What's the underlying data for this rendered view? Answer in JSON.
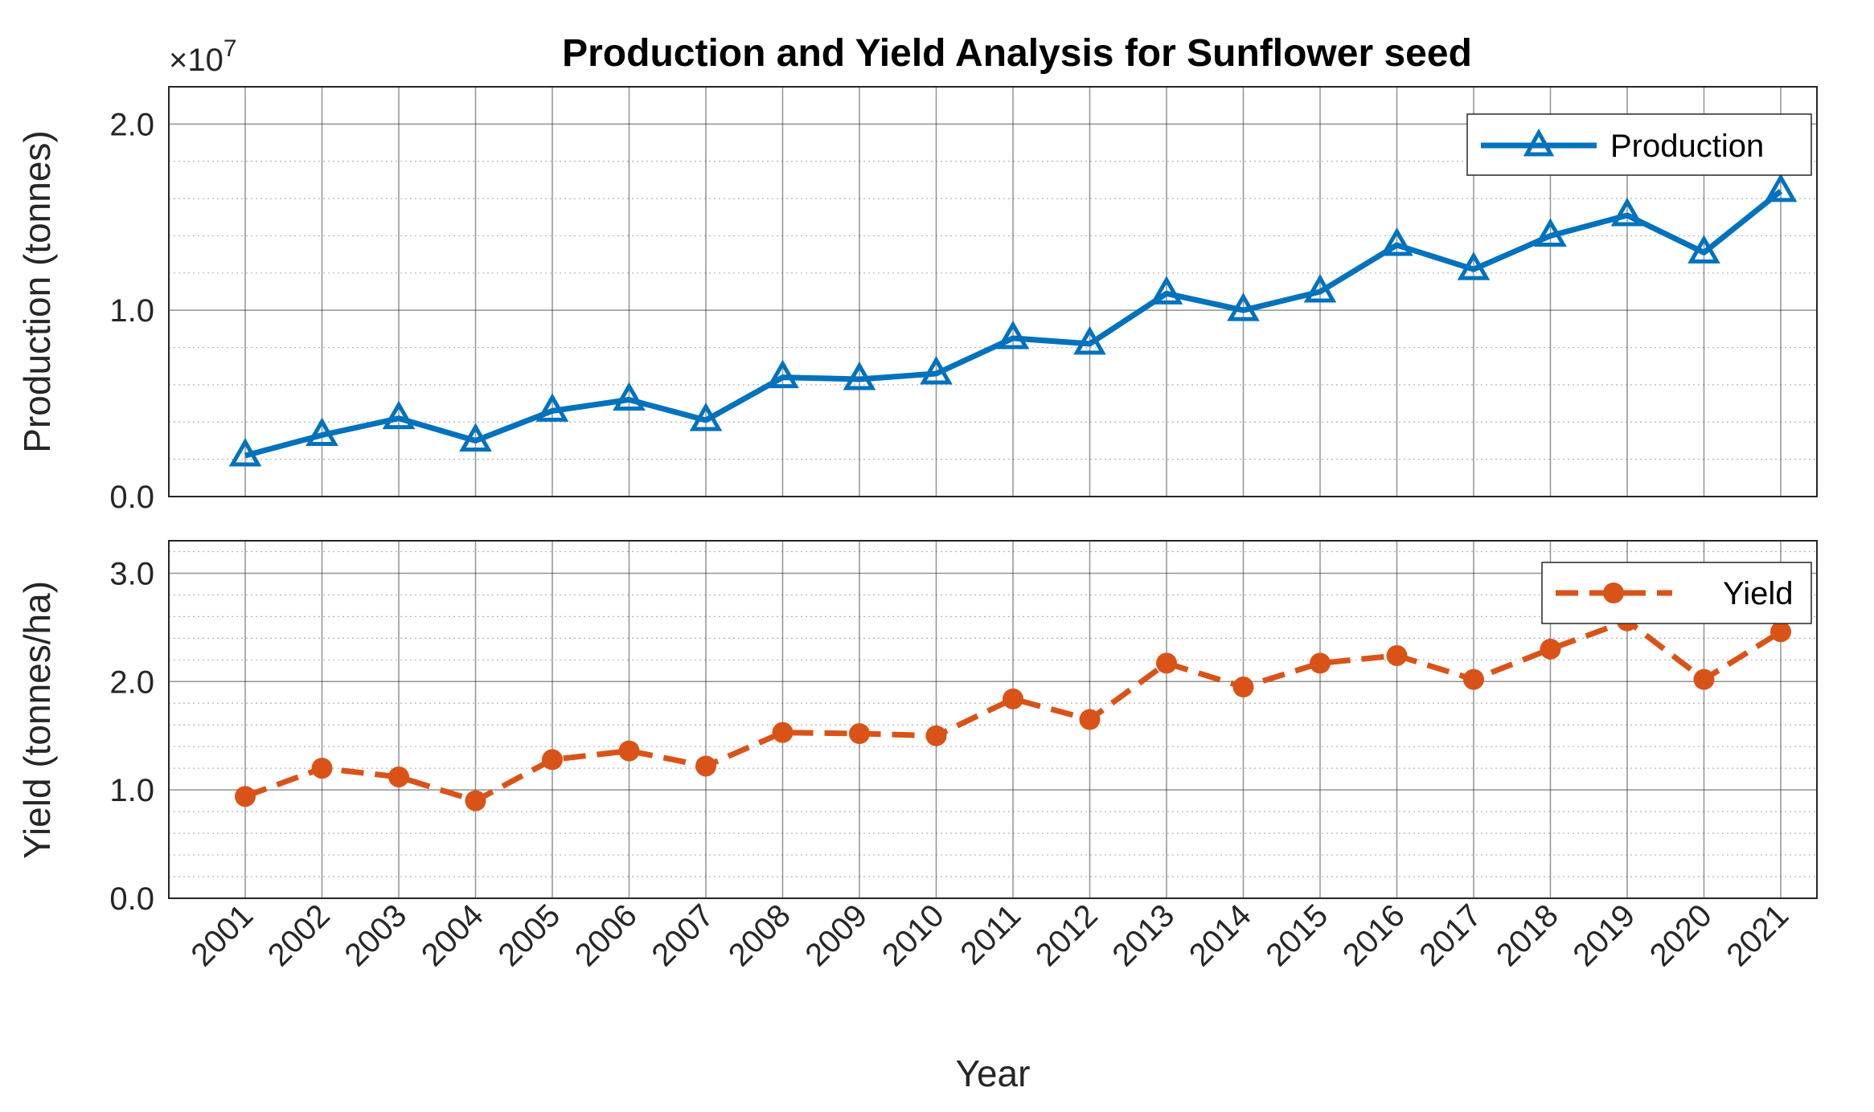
{
  "chart_data": [
    {
      "type": "line",
      "title": "Production and Yield Analysis for Sunflower seed",
      "ylabel": "Production (tonnes)",
      "exponent_label": "×10",
      "exponent_power": "7",
      "ylim": [
        0,
        2.2
      ],
      "yticks": [
        0,
        1,
        2
      ],
      "ytick_labels": [
        "0.0",
        "1.0",
        "2.0"
      ],
      "y_minor_step": 0.2,
      "categories": [
        "2001",
        "2002",
        "2003",
        "2004",
        "2005",
        "2006",
        "2007",
        "2008",
        "2009",
        "2010",
        "2011",
        "2012",
        "2013",
        "2014",
        "2015",
        "2016",
        "2017",
        "2018",
        "2019",
        "2020",
        "2021"
      ],
      "series": [
        {
          "name": "Production",
          "color": "#0072BD",
          "marker": "triangle",
          "line_style": "solid",
          "values": [
            0.22,
            0.33,
            0.42,
            0.3,
            0.46,
            0.52,
            0.41,
            0.64,
            0.63,
            0.66,
            0.85,
            0.82,
            1.09,
            1.0,
            1.1,
            1.35,
            1.22,
            1.4,
            1.51,
            1.31,
            1.64
          ]
        }
      ],
      "legend": "top-right"
    },
    {
      "type": "line",
      "ylabel": "Yield (tonnes/ha)",
      "xlabel": "Year",
      "ylim": [
        0,
        3.3
      ],
      "yticks": [
        0,
        1,
        2,
        3
      ],
      "ytick_labels": [
        "0.0",
        "1.0",
        "2.0",
        "3.0"
      ],
      "y_minor_step": 0.2,
      "categories": [
        "2001",
        "2002",
        "2003",
        "2004",
        "2005",
        "2006",
        "2007",
        "2008",
        "2009",
        "2010",
        "2011",
        "2012",
        "2013",
        "2014",
        "2015",
        "2016",
        "2017",
        "2018",
        "2019",
        "2020",
        "2021"
      ],
      "series": [
        {
          "name": "Yield",
          "color": "#D95319",
          "marker": "circle",
          "line_style": "dashed",
          "values": [
            0.94,
            1.2,
            1.12,
            0.9,
            1.28,
            1.36,
            1.22,
            1.53,
            1.52,
            1.5,
            1.84,
            1.65,
            2.17,
            1.95,
            2.17,
            2.24,
            2.02,
            2.3,
            2.56,
            2.02,
            2.46
          ]
        }
      ],
      "legend": "top-right"
    }
  ]
}
